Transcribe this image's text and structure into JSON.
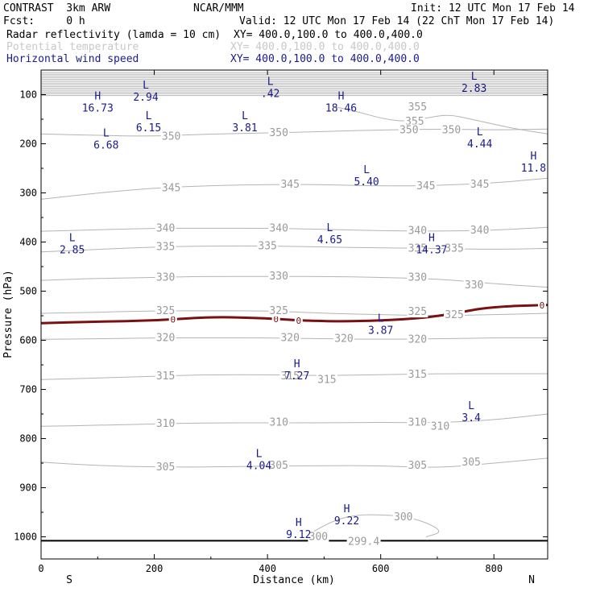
{
  "header": {
    "model": "CONTRAST  3km ARW",
    "org": "NCAR/MMM",
    "init": "Init: 12 UTC Mon 17 Feb 14",
    "fcst": "Fcst:     0 h",
    "valid": "Valid: 12 UTC Mon 17 Feb 14 (22 ChT Mon 17 Feb 14)",
    "field1": "Radar reflectivity (lamda = 10 cm)",
    "field1_xy": "XY= 400.0,100.0 to 400.0,400.0",
    "field2": "Potential temperature",
    "field2_xy": "XY= 400.0,100.0 to 400.0,400.0",
    "field3": "Horizontal wind speed",
    "field3_xy": "XY= 400.0,100.0 to 400.0,400.0"
  },
  "colors": {
    "text": "#000000",
    "field2": "#c8c8c8",
    "field3": "#1a1a8c",
    "theta": "#b4b4b4",
    "zero": "#7a1010"
  },
  "chart_data": {
    "type": "line",
    "title": "",
    "xlabel": "Distance (km)",
    "ylabel": "Pressure (hPa)",
    "xlim": [
      0,
      895
    ],
    "ylim": [
      1045,
      50
    ],
    "x_ticks": [
      0,
      200,
      400,
      600,
      800
    ],
    "y_ticks": [
      100,
      200,
      300,
      400,
      500,
      600,
      700,
      800,
      900,
      1000
    ],
    "x_end_labels": {
      "left": "S",
      "right": "N"
    },
    "theta_contours": [
      {
        "value": "355",
        "label_x": 660,
        "label_p": 155,
        "points": [
          [
            520,
            125
          ],
          [
            560,
            135
          ],
          [
            600,
            148
          ],
          [
            640,
            155
          ],
          [
            680,
            148
          ],
          [
            720,
            140
          ],
          [
            760,
            150
          ],
          [
            800,
            160
          ],
          [
            840,
            170
          ],
          [
            895,
            180
          ]
        ]
      },
      {
        "value": "350",
        "label_x": 420,
        "label_p": 178,
        "points": [
          [
            0,
            180
          ],
          [
            100,
            183
          ],
          [
            200,
            185
          ],
          [
            300,
            180
          ],
          [
            400,
            178
          ],
          [
            500,
            175
          ],
          [
            600,
            172
          ],
          [
            700,
            170
          ],
          [
            800,
            172
          ],
          [
            895,
            170
          ]
        ]
      },
      {
        "value": "345",
        "label_x": 440,
        "label_p": 283,
        "points": [
          [
            0,
            313
          ],
          [
            100,
            300
          ],
          [
            200,
            290
          ],
          [
            300,
            285
          ],
          [
            400,
            283
          ],
          [
            500,
            283
          ],
          [
            600,
            286
          ],
          [
            700,
            285
          ],
          [
            800,
            280
          ],
          [
            895,
            270
          ]
        ]
      },
      {
        "value": "340",
        "label_x": 420,
        "label_p": 372,
        "points": [
          [
            0,
            378
          ],
          [
            100,
            375
          ],
          [
            200,
            372
          ],
          [
            300,
            372
          ],
          [
            400,
            372
          ],
          [
            500,
            374
          ],
          [
            600,
            377
          ],
          [
            700,
            378
          ],
          [
            800,
            376
          ],
          [
            895,
            370
          ]
        ]
      },
      {
        "value": "335",
        "label_x": 400,
        "label_p": 408,
        "points": [
          [
            0,
            420
          ],
          [
            100,
            415
          ],
          [
            200,
            410
          ],
          [
            300,
            408
          ],
          [
            400,
            408
          ],
          [
            500,
            410
          ],
          [
            600,
            412
          ],
          [
            700,
            413
          ],
          [
            800,
            415
          ],
          [
            895,
            413
          ]
        ]
      },
      {
        "value": "330",
        "label_x": 420,
        "label_p": 470,
        "points": [
          [
            0,
            478
          ],
          [
            100,
            474
          ],
          [
            200,
            472
          ],
          [
            300,
            470
          ],
          [
            400,
            470
          ],
          [
            500,
            470
          ],
          [
            600,
            472
          ],
          [
            700,
            475
          ],
          [
            800,
            485
          ],
          [
            895,
            492
          ]
        ]
      },
      {
        "value": "325",
        "label_x": 420,
        "label_p": 540,
        "points": [
          [
            0,
            545
          ],
          [
            100,
            543
          ],
          [
            200,
            540
          ],
          [
            300,
            540
          ],
          [
            400,
            540
          ],
          [
            500,
            545
          ],
          [
            600,
            548
          ],
          [
            700,
            550
          ],
          [
            800,
            548
          ],
          [
            895,
            545
          ]
        ]
      },
      {
        "value": "320",
        "label_x": 440,
        "label_p": 595,
        "points": [
          [
            0,
            598
          ],
          [
            100,
            597
          ],
          [
            200,
            595
          ],
          [
            300,
            595
          ],
          [
            400,
            595
          ],
          [
            500,
            597
          ],
          [
            600,
            598
          ],
          [
            700,
            597
          ],
          [
            800,
            595
          ],
          [
            895,
            595
          ]
        ]
      },
      {
        "value": "315",
        "label_x": 440,
        "label_p": 673,
        "points": [
          [
            0,
            680
          ],
          [
            100,
            677
          ],
          [
            200,
            673
          ],
          [
            300,
            670
          ],
          [
            400,
            670
          ],
          [
            500,
            672
          ],
          [
            600,
            670
          ],
          [
            700,
            668
          ],
          [
            800,
            668
          ],
          [
            895,
            668
          ]
        ]
      },
      {
        "value": "310",
        "label_x": 420,
        "label_p": 767,
        "points": [
          [
            0,
            775
          ],
          [
            100,
            773
          ],
          [
            200,
            770
          ],
          [
            300,
            768
          ],
          [
            400,
            768
          ],
          [
            500,
            768
          ],
          [
            600,
            767
          ],
          [
            700,
            768
          ],
          [
            800,
            762
          ],
          [
            895,
            750
          ]
        ]
      },
      {
        "value": "305",
        "label_x": 420,
        "label_p": 855,
        "points": [
          [
            0,
            848
          ],
          [
            100,
            855
          ],
          [
            200,
            858
          ],
          [
            300,
            858
          ],
          [
            400,
            856
          ],
          [
            500,
            855
          ],
          [
            600,
            855
          ],
          [
            700,
            860
          ],
          [
            800,
            850
          ],
          [
            895,
            840
          ]
        ]
      },
      {
        "value": "300",
        "label_x": 640,
        "label_p": 960,
        "points": [
          [
            480,
            990
          ],
          [
            520,
            965
          ],
          [
            560,
            955
          ],
          [
            600,
            955
          ],
          [
            640,
            958
          ],
          [
            680,
            970
          ],
          [
            710,
            990
          ],
          [
            680,
            1000
          ]
        ]
      }
    ],
    "theta_label_extras": [
      {
        "text": "355",
        "x": 665,
        "p": 125
      },
      {
        "text": "350",
        "x": 230,
        "p": 185
      },
      {
        "text": "350",
        "x": 650,
        "p": 172
      },
      {
        "text": "350",
        "x": 725,
        "p": 172
      },
      {
        "text": "345",
        "x": 230,
        "p": 290
      },
      {
        "text": "345",
        "x": 680,
        "p": 286
      },
      {
        "text": "345",
        "x": 775,
        "p": 283
      },
      {
        "text": "340",
        "x": 220,
        "p": 372
      },
      {
        "text": "340",
        "x": 665,
        "p": 377
      },
      {
        "text": "340",
        "x": 775,
        "p": 376
      },
      {
        "text": "335",
        "x": 220,
        "p": 410
      },
      {
        "text": "335",
        "x": 665,
        "p": 413
      },
      {
        "text": "335",
        "x": 730,
        "p": 413
      },
      {
        "text": "330",
        "x": 220,
        "p": 472
      },
      {
        "text": "330",
        "x": 665,
        "p": 472
      },
      {
        "text": "330",
        "x": 765,
        "p": 488
      },
      {
        "text": "325",
        "x": 220,
        "p": 540
      },
      {
        "text": "325",
        "x": 665,
        "p": 542
      },
      {
        "text": "325",
        "x": 730,
        "p": 548
      },
      {
        "text": "320",
        "x": 220,
        "p": 595
      },
      {
        "text": "320",
        "x": 535,
        "p": 597
      },
      {
        "text": "320",
        "x": 665,
        "p": 598
      },
      {
        "text": "315",
        "x": 220,
        "p": 673
      },
      {
        "text": "315",
        "x": 505,
        "p": 680
      },
      {
        "text": "315",
        "x": 665,
        "p": 670
      },
      {
        "text": "310",
        "x": 220,
        "p": 770
      },
      {
        "text": "310",
        "x": 665,
        "p": 767
      },
      {
        "text": "310",
        "x": 705,
        "p": 775
      },
      {
        "text": "305",
        "x": 220,
        "p": 858
      },
      {
        "text": "305",
        "x": 665,
        "p": 855
      },
      {
        "text": "305",
        "x": 760,
        "p": 848
      },
      {
        "text": "300",
        "x": 490,
        "p": 1000
      },
      {
        "text": "299.4",
        "x": 570,
        "p": 1010
      }
    ],
    "zero_line": {
      "value": "0",
      "points": [
        [
          0,
          565
        ],
        [
          100,
          562
        ],
        [
          200,
          560
        ],
        [
          300,
          552
        ],
        [
          400,
          555
        ],
        [
          460,
          560
        ],
        [
          550,
          562
        ],
        [
          650,
          557
        ],
        [
          720,
          548
        ],
        [
          790,
          532
        ],
        [
          895,
          528
        ]
      ],
      "label_x": [
        233,
        415,
        455,
        885
      ]
    },
    "wind_extrema": [
      {
        "type": "H",
        "value": "16.73",
        "x": 100,
        "p": 110
      },
      {
        "type": "L",
        "value": "2.94",
        "x": 185,
        "p": 88
      },
      {
        "type": "L",
        "value": ".42",
        "x": 405,
        "p": 80
      },
      {
        "type": "H",
        "value": "18.46",
        "x": 530,
        "p": 110
      },
      {
        "type": "L",
        "value": "2.83",
        "x": 765,
        "p": 70
      },
      {
        "type": "L",
        "value": "6.15",
        "x": 190,
        "p": 150
      },
      {
        "type": "L",
        "value": "3.81",
        "x": 360,
        "p": 150
      },
      {
        "type": "L",
        "value": "6.68",
        "x": 115,
        "p": 185
      },
      {
        "type": "L",
        "value": "4.44",
        "x": 775,
        "p": 183
      },
      {
        "type": "H",
        "value": "11.8",
        "x": 870,
        "p": 232
      },
      {
        "type": "L",
        "value": "5.40",
        "x": 575,
        "p": 260
      },
      {
        "type": "L",
        "value": "4.65",
        "x": 510,
        "p": 378
      },
      {
        "type": "H",
        "value": "14.37",
        "x": 690,
        "p": 398
      },
      {
        "type": "L",
        "value": "2.85",
        "x": 55,
        "p": 398
      },
      {
        "type": "L",
        "value": "3.87",
        "x": 600,
        "p": 562
      },
      {
        "type": "H",
        "value": "7.27",
        "x": 452,
        "p": 655
      },
      {
        "type": "L",
        "value": "3.4",
        "x": 760,
        "p": 740
      },
      {
        "type": "L",
        "value": "4.04",
        "x": 385,
        "p": 838
      },
      {
        "type": "H",
        "value": "9.22",
        "x": 540,
        "p": 950
      },
      {
        "type": "H",
        "value": "9.12",
        "x": 455,
        "p": 978
      }
    ]
  }
}
